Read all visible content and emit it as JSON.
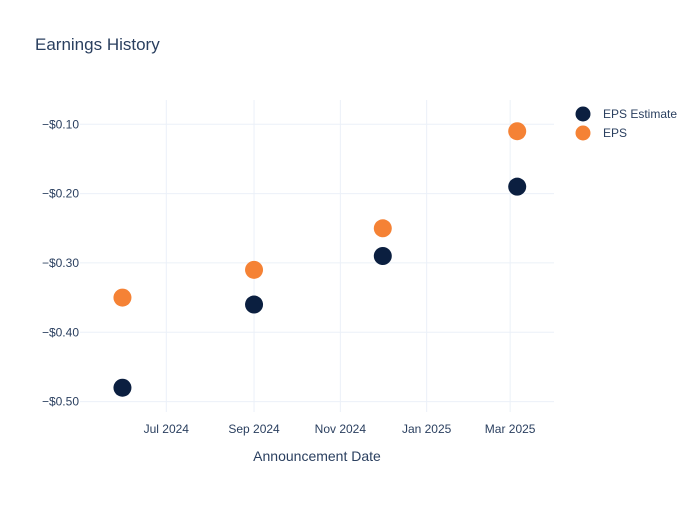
{
  "chart_data": {
    "type": "scatter",
    "title": "Earnings History",
    "xlabel": "Announcement Date",
    "ylabel": "",
    "x_ticks": [
      {
        "date": "2024-07-01",
        "label": "Jul 2024"
      },
      {
        "date": "2024-09-01",
        "label": "Sep 2024"
      },
      {
        "date": "2024-11-01",
        "label": "Nov 2024"
      },
      {
        "date": "2025-01-01",
        "label": "Jan 2025"
      },
      {
        "date": "2025-03-01",
        "label": "Mar 2025"
      }
    ],
    "y_ticks": [
      {
        "value": -0.1,
        "label": "−$0.10"
      },
      {
        "value": -0.2,
        "label": "−$0.20"
      },
      {
        "value": -0.3,
        "label": "−$0.30"
      },
      {
        "value": -0.4,
        "label": "−$0.40"
      },
      {
        "value": -0.5,
        "label": "−$0.50"
      }
    ],
    "xlim": [
      "2024-05-01",
      "2025-04-01"
    ],
    "ylim": [
      -0.515,
      -0.065
    ],
    "grid": true,
    "legend_position": "top-right",
    "series": [
      {
        "name": "EPS Estimate",
        "color": "#0b1f40",
        "points": [
          {
            "x": "2024-05-31",
            "y": -0.48
          },
          {
            "x": "2024-09-01",
            "y": -0.36
          },
          {
            "x": "2024-12-01",
            "y": -0.29
          },
          {
            "x": "2025-03-06",
            "y": -0.19
          }
        ]
      },
      {
        "name": "EPS",
        "color": "#f58235",
        "points": [
          {
            "x": "2024-05-31",
            "y": -0.35
          },
          {
            "x": "2024-09-01",
            "y": -0.31
          },
          {
            "x": "2024-12-01",
            "y": -0.25
          },
          {
            "x": "2025-03-06",
            "y": -0.11
          }
        ]
      }
    ]
  }
}
